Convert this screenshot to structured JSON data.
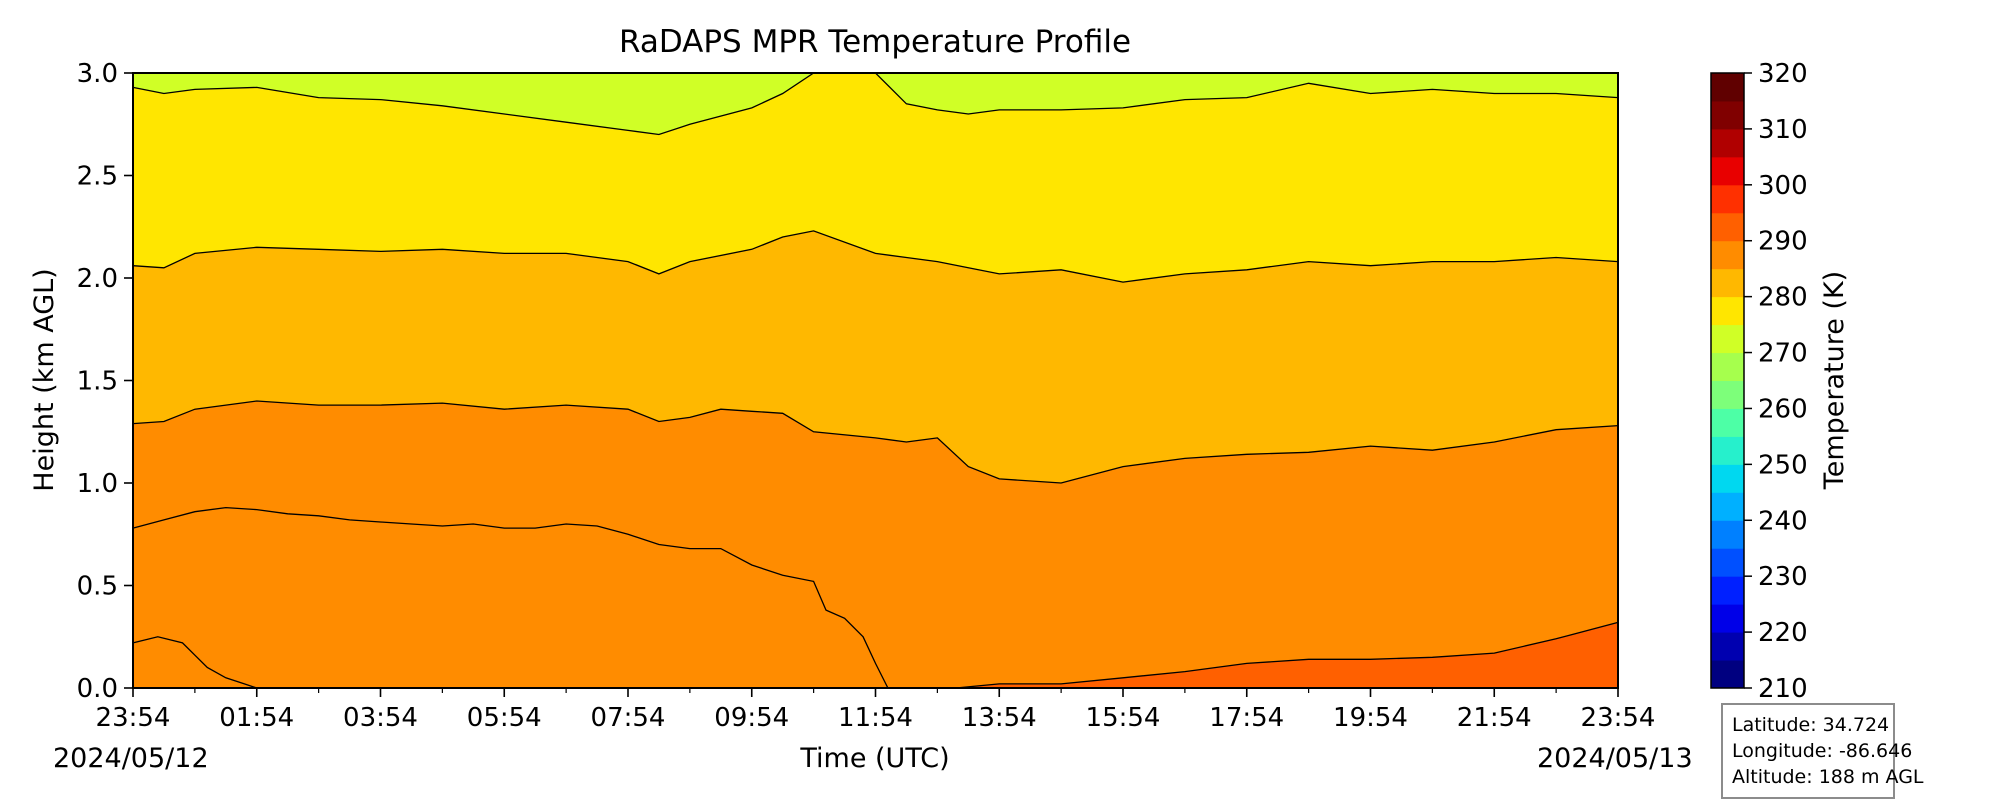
{
  "chart_data": {
    "type": "heatmap",
    "title": "RaDAPS MPR Temperature Profile",
    "xlabel": "Time (UTC)",
    "ylabel": "Height (km AGL)",
    "x_ticks": [
      "23:54",
      "01:54",
      "03:54",
      "05:54",
      "07:54",
      "09:54",
      "11:54",
      "13:54",
      "15:54",
      "17:54",
      "19:54",
      "21:54",
      "23:54"
    ],
    "x_hours": [
      0,
      2,
      4,
      6,
      8,
      10,
      12,
      14,
      16,
      18,
      20,
      22,
      24
    ],
    "start_date": "2024/05/12",
    "end_date": "2024/05/13",
    "ylim": [
      0,
      3.0
    ],
    "y_ticks": [
      "0.0",
      "0.5",
      "1.0",
      "1.5",
      "2.0",
      "2.5",
      "3.0"
    ],
    "colorbar": {
      "label": "Temperature (K)",
      "range": [
        210,
        320
      ],
      "ticks": [
        "210",
        "220",
        "230",
        "240",
        "250",
        "260",
        "270",
        "280",
        "290",
        "300",
        "310",
        "320"
      ],
      "step": 5,
      "colors": [
        "#000080",
        "#0000b0",
        "#0000e8",
        "#0020ff",
        "#0050ff",
        "#0080ff",
        "#00b0ff",
        "#00d8f0",
        "#26f0cc",
        "#4dffa6",
        "#7dff7a",
        "#a6ff4d",
        "#d0ff26",
        "#ffe600",
        "#ffb800",
        "#ff8c00",
        "#ff6000",
        "#ff3000",
        "#e80000",
        "#b00000",
        "#800000",
        "#600000"
      ]
    },
    "contours": [
      {
        "level": 295,
        "points": [
          [
            0,
            0.22
          ],
          [
            0.4,
            0.25
          ],
          [
            0.8,
            0.22
          ],
          [
            1.0,
            0.16
          ],
          [
            1.2,
            0.1
          ],
          [
            1.5,
            0.05
          ],
          [
            1.8,
            0.02
          ],
          [
            2.0,
            0.0
          ]
        ]
      },
      {
        "level": 290,
        "points": [
          [
            0,
            0.78
          ],
          [
            0.5,
            0.82
          ],
          [
            1.0,
            0.86
          ],
          [
            1.5,
            0.88
          ],
          [
            2.0,
            0.87
          ],
          [
            2.5,
            0.85
          ],
          [
            3.0,
            0.84
          ],
          [
            3.5,
            0.82
          ],
          [
            4.0,
            0.81
          ],
          [
            4.5,
            0.8
          ],
          [
            5.0,
            0.79
          ],
          [
            5.5,
            0.8
          ],
          [
            6.0,
            0.78
          ],
          [
            6.5,
            0.78
          ],
          [
            7.0,
            0.8
          ],
          [
            7.5,
            0.79
          ],
          [
            8.0,
            0.75
          ],
          [
            8.5,
            0.7
          ],
          [
            9.0,
            0.68
          ],
          [
            9.5,
            0.68
          ],
          [
            10.0,
            0.6
          ],
          [
            10.5,
            0.55
          ],
          [
            11.0,
            0.52
          ],
          [
            11.2,
            0.38
          ],
          [
            11.5,
            0.34
          ],
          [
            11.8,
            0.25
          ],
          [
            12.0,
            0.12
          ],
          [
            12.2,
            0.0
          ]
        ]
      },
      {
        "level": 285,
        "points": [
          [
            13.3,
            0.0
          ],
          [
            14.0,
            0.02
          ],
          [
            15.0,
            0.02
          ],
          [
            16.0,
            0.05
          ],
          [
            17.0,
            0.08
          ],
          [
            18.0,
            0.12
          ],
          [
            19.0,
            0.14
          ],
          [
            20.0,
            0.14
          ],
          [
            21.0,
            0.15
          ],
          [
            22.0,
            0.17
          ],
          [
            23.0,
            0.24
          ],
          [
            24.0,
            0.32
          ]
        ]
      },
      {
        "level": 280,
        "points": [
          [
            0,
            1.29
          ],
          [
            0.5,
            1.3
          ],
          [
            1.0,
            1.36
          ],
          [
            2.0,
            1.4
          ],
          [
            3.0,
            1.38
          ],
          [
            4.0,
            1.38
          ],
          [
            5.0,
            1.39
          ],
          [
            6.0,
            1.36
          ],
          [
            7.0,
            1.38
          ],
          [
            8.0,
            1.36
          ],
          [
            8.5,
            1.3
          ],
          [
            9.0,
            1.32
          ],
          [
            9.5,
            1.36
          ],
          [
            10.0,
            1.35
          ],
          [
            10.5,
            1.34
          ],
          [
            11.0,
            1.25
          ],
          [
            12.0,
            1.22
          ],
          [
            12.5,
            1.2
          ],
          [
            13.0,
            1.22
          ],
          [
            13.5,
            1.08
          ],
          [
            14.0,
            1.02
          ],
          [
            15.0,
            1.0
          ],
          [
            16.0,
            1.08
          ],
          [
            17.0,
            1.12
          ],
          [
            18.0,
            1.14
          ],
          [
            19.0,
            1.15
          ],
          [
            20.0,
            1.18
          ],
          [
            21.0,
            1.16
          ],
          [
            22.0,
            1.2
          ],
          [
            23.0,
            1.26
          ],
          [
            24.0,
            1.28
          ]
        ]
      },
      {
        "level": 275,
        "points": [
          [
            0,
            2.06
          ],
          [
            0.5,
            2.05
          ],
          [
            1.0,
            2.12
          ],
          [
            2.0,
            2.15
          ],
          [
            3.0,
            2.14
          ],
          [
            4.0,
            2.13
          ],
          [
            5.0,
            2.14
          ],
          [
            6.0,
            2.12
          ],
          [
            7.0,
            2.12
          ],
          [
            8.0,
            2.08
          ],
          [
            8.5,
            2.02
          ],
          [
            9.0,
            2.08
          ],
          [
            10.0,
            2.14
          ],
          [
            10.5,
            2.2
          ],
          [
            11.0,
            2.23
          ],
          [
            12.0,
            2.12
          ],
          [
            12.5,
            2.1
          ],
          [
            13.0,
            2.08
          ],
          [
            13.5,
            2.05
          ],
          [
            14.0,
            2.02
          ],
          [
            15.0,
            2.04
          ],
          [
            16.0,
            1.98
          ],
          [
            17.0,
            2.02
          ],
          [
            18.0,
            2.04
          ],
          [
            19.0,
            2.08
          ],
          [
            20.0,
            2.06
          ],
          [
            21.0,
            2.08
          ],
          [
            22.0,
            2.08
          ],
          [
            23.0,
            2.1
          ],
          [
            24.0,
            2.08
          ]
        ]
      },
      {
        "level": 270,
        "points": [
          [
            0,
            2.93
          ],
          [
            0.5,
            2.9
          ],
          [
            1.0,
            2.92
          ],
          [
            2.0,
            2.93
          ],
          [
            3.0,
            2.88
          ],
          [
            4.0,
            2.87
          ],
          [
            5.0,
            2.84
          ],
          [
            6.0,
            2.8
          ],
          [
            7.0,
            2.76
          ],
          [
            8.0,
            2.72
          ],
          [
            8.5,
            2.7
          ],
          [
            9.0,
            2.75
          ],
          [
            10.0,
            2.83
          ],
          [
            10.5,
            2.9
          ],
          [
            11.0,
            3.0
          ],
          [
            12.0,
            3.0
          ],
          [
            12.5,
            2.85
          ],
          [
            13.0,
            2.82
          ],
          [
            13.5,
            2.8
          ],
          [
            14.0,
            2.82
          ],
          [
            15.0,
            2.82
          ],
          [
            16.0,
            2.83
          ],
          [
            17.0,
            2.87
          ],
          [
            18.0,
            2.88
          ],
          [
            19.0,
            2.95
          ],
          [
            20.0,
            2.9
          ],
          [
            21.0,
            2.92
          ],
          [
            22.0,
            2.9
          ],
          [
            23.0,
            2.9
          ],
          [
            24.0,
            2.88
          ]
        ]
      }
    ]
  },
  "info": {
    "latitude": "Latitude: 34.724",
    "longitude": "Longitude: -86.646",
    "altitude": "Altitude: 188 m AGL"
  }
}
